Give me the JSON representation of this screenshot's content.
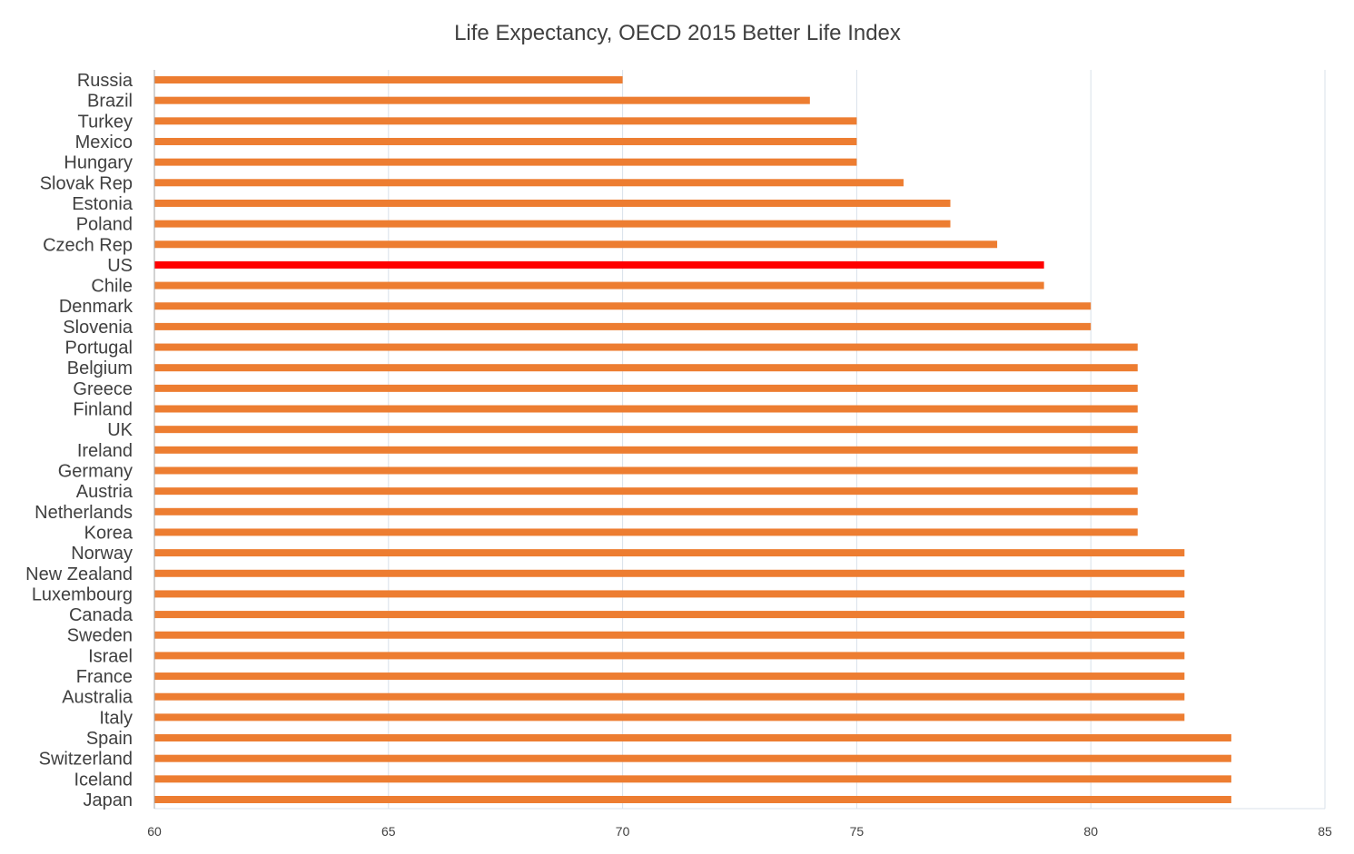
{
  "chart_data": {
    "type": "bar",
    "orientation": "horizontal",
    "title": "Life Expectancy, OECD 2015 Better Life Index",
    "xlabel": "",
    "ylabel": "",
    "xlim": [
      60,
      85
    ],
    "ticks": [
      "60",
      "65",
      "70",
      "75",
      "80",
      "85"
    ],
    "grid": true,
    "legend": "none",
    "colors": {
      "default": "#ED7D31",
      "highlight": "#FF0000",
      "grid": "#D9E1EA",
      "axis": "#A6A6A6",
      "text": "#404040"
    },
    "highlight": "US",
    "categories": [
      "Russia",
      "Brazil",
      "Turkey",
      "Mexico",
      "Hungary",
      "Slovak Rep",
      "Estonia",
      "Poland",
      "Czech Rep",
      "US",
      "Chile",
      "Denmark",
      "Slovenia",
      "Portugal",
      "Belgium",
      "Greece",
      "Finland",
      "UK",
      "Ireland",
      "Germany",
      "Austria",
      "Netherlands",
      "Korea",
      "Norway",
      "New Zealand",
      "Luxembourg",
      "Canada",
      "Sweden",
      "Israel",
      "France",
      "Australia",
      "Italy",
      "Spain",
      "Switzerland",
      "Iceland",
      "Japan"
    ],
    "values": [
      70,
      74,
      75,
      75,
      75,
      76,
      77,
      77,
      78,
      79,
      79,
      80,
      80,
      81,
      81,
      81,
      81,
      81,
      81,
      81,
      81,
      81,
      81,
      82,
      82,
      82,
      82,
      82,
      82,
      82,
      82,
      82,
      83,
      83,
      83,
      83
    ]
  }
}
